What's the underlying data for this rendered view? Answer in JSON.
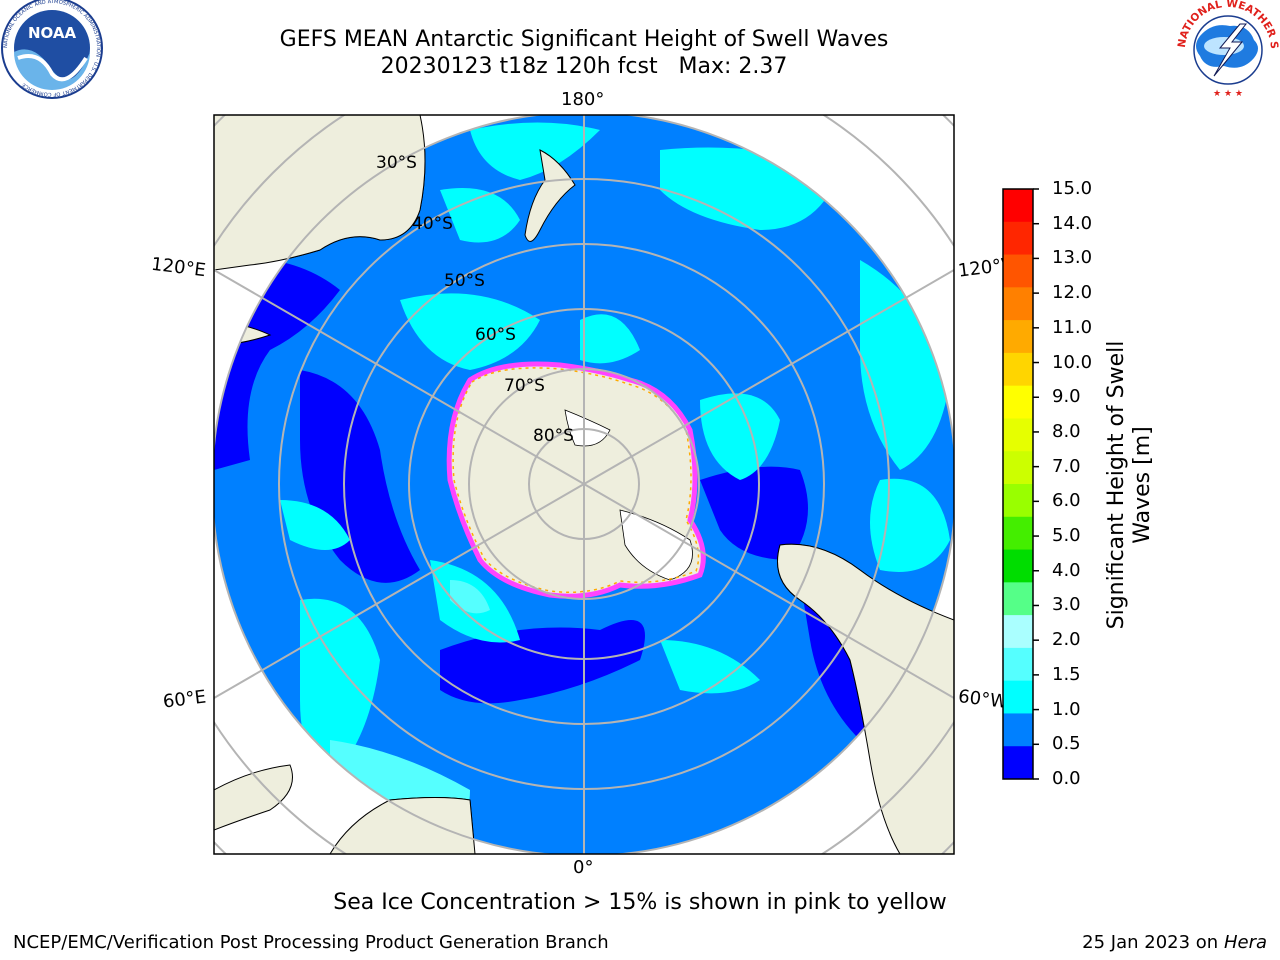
{
  "title": {
    "line1": "GEFS MEAN Antarctic Significant Height of Swell Waves",
    "line2": "20230123 t18z 120h fcst   Max: 2.37"
  },
  "map": {
    "lon_labels": {
      "top": "180°",
      "bottom": "0°",
      "left_upper": "120°E",
      "left_lower": "60°E",
      "right_upper": "120°W",
      "right_lower": "60°W"
    },
    "lat_labels": [
      "30°S",
      "40°S",
      "50°S",
      "60°S",
      "70°S",
      "80°S"
    ],
    "colors": {
      "ocean_base": "#0080ff",
      "ocean_low": "#0000ff",
      "ocean_mid": "#00ffff",
      "ocean_high": "#55ffff",
      "land": "#eeeedd",
      "ice_edge": "#ff44ff",
      "grid": "#b4b4b4"
    }
  },
  "colorbar": {
    "title_line1": "Significant Height of Swell",
    "title_line2": "Waves [m]",
    "ticks": [
      "15.0",
      "14.0",
      "13.0",
      "12.0",
      "11.0",
      "10.0",
      "9.0",
      "8.0",
      "7.0",
      "6.0",
      "5.0",
      "4.0",
      "3.0",
      "2.0",
      "1.5",
      "1.0",
      "0.5",
      "0.0"
    ],
    "colors_top_to_bottom": [
      "#ff0000",
      "#ff2600",
      "#ff5500",
      "#ff8000",
      "#ffaa00",
      "#ffd500",
      "#ffff00",
      "#e6ff00",
      "#ccff00",
      "#99ff00",
      "#44ee00",
      "#00dd00",
      "#55ff88",
      "#aaffff",
      "#55ffff",
      "#00ffff",
      "#0080ff",
      "#0000ff"
    ]
  },
  "logos": {
    "left": "NOAA",
    "left_ring": "NATIONAL OCEANIC AND ATMOSPHERIC ADMINISTRATION · U.S. DEPARTMENT OF COMMERCE",
    "right_ring": "NATIONAL WEATHER SERVICE"
  },
  "caption": "Sea Ice Concentration > 15% is shown in pink to yellow",
  "footer": {
    "left": "NCEP/EMC/Verification Post Processing Product Generation Branch",
    "right_date": "25 Jan 2023 on ",
    "right_host": "Hera"
  }
}
